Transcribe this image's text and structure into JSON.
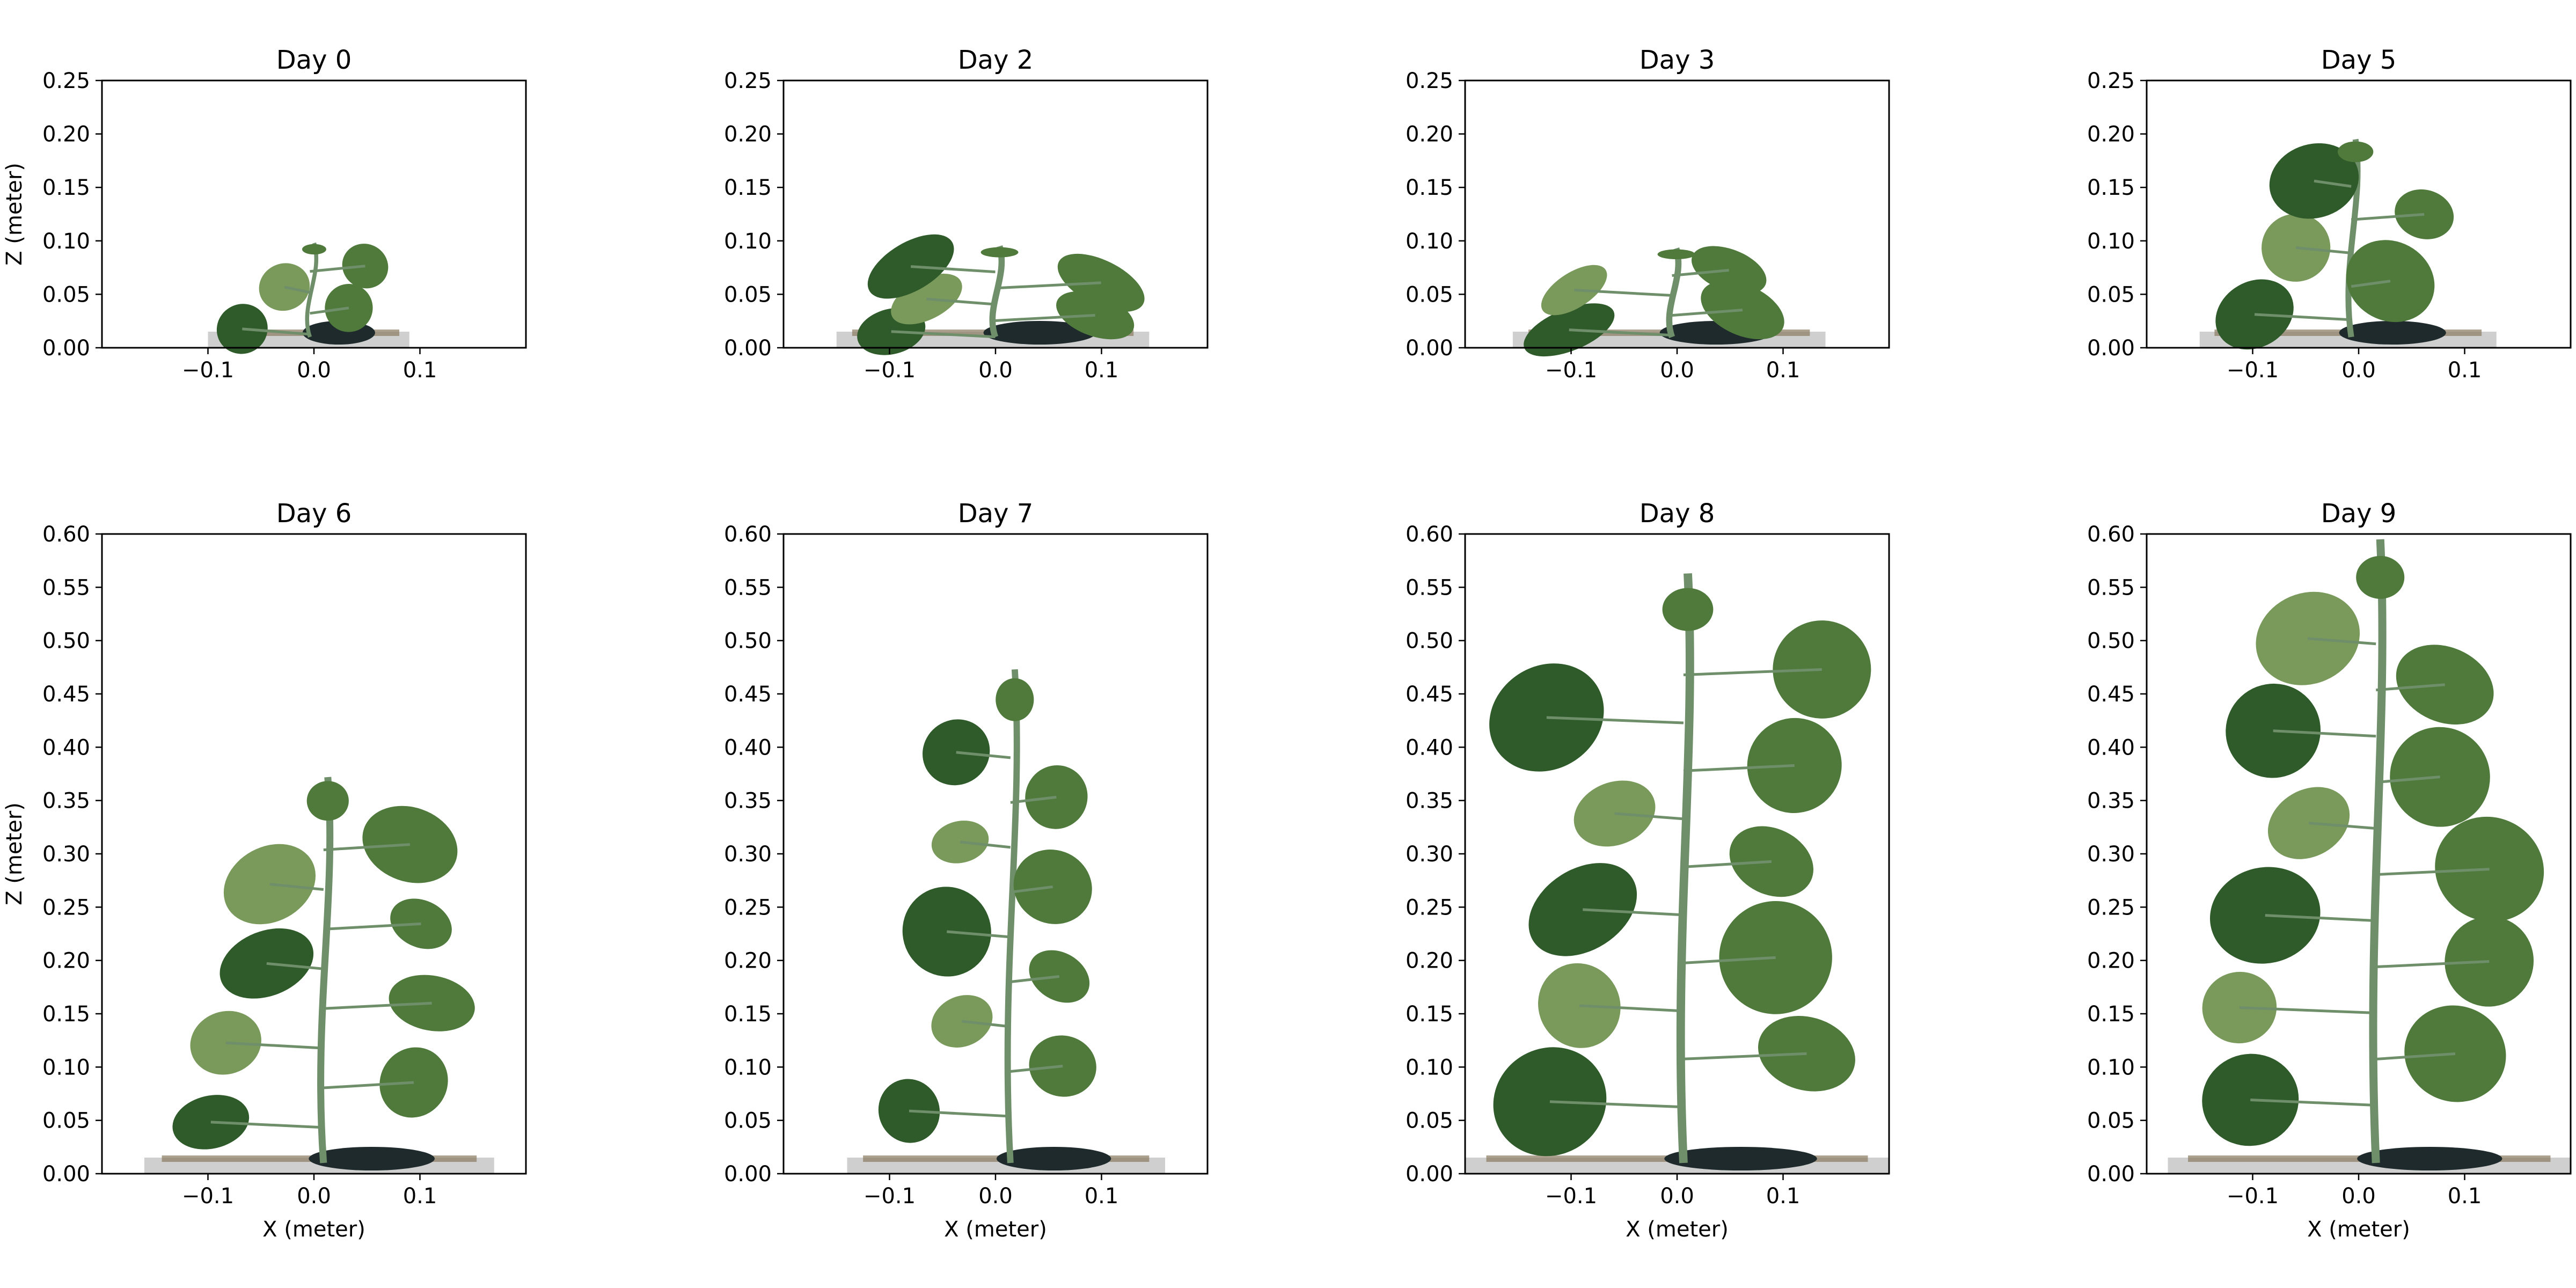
{
  "figure": {
    "background": "#ffffff",
    "colors": {
      "leaf_dark": "#2f5a2a",
      "leaf_mid": "#4f7a3c",
      "leaf_light": "#7a9a5c",
      "stem": "#6f8f6a",
      "soil": "#8a7a60",
      "dark_soil": "#1e2a2c",
      "tray": "#cfcfcf",
      "tray_blue": "#a9b6c2"
    }
  },
  "chart_data": [
    {
      "type": "scatter",
      "title": "Day 0",
      "xlabel": "",
      "ylabel": "Z (meter)",
      "xlim": [
        -0.2,
        0.2
      ],
      "ylim": [
        0.0,
        0.25
      ],
      "xticks": [
        -0.1,
        0.0,
        0.1
      ],
      "xtick_labels": [
        "−0.1",
        "0.0",
        "0.1"
      ],
      "yticks": [
        0.0,
        0.05,
        0.1,
        0.15,
        0.2,
        0.25
      ],
      "ytick_labels": [
        "0.00",
        "0.05",
        "0.10",
        "0.15",
        "0.20",
        "0.25"
      ],
      "point_cloud_extent": {
        "x": [
          -0.1,
          0.09
        ],
        "z": [
          0.0,
          0.098
        ]
      }
    },
    {
      "type": "scatter",
      "title": "Day 2",
      "xlabel": "",
      "ylabel": "",
      "xlim": [
        -0.2,
        0.2
      ],
      "ylim": [
        0.0,
        0.25
      ],
      "xticks": [
        -0.1,
        0.0,
        0.1
      ],
      "xtick_labels": [
        "−0.1",
        "0.0",
        "0.1"
      ],
      "yticks": [
        0.0,
        0.05,
        0.1,
        0.15,
        0.2,
        0.25
      ],
      "ytick_labels": [
        "0.00",
        "0.05",
        "0.10",
        "0.15",
        "0.20",
        "0.25"
      ],
      "point_cloud_extent": {
        "x": [
          -0.15,
          0.145
        ],
        "z": [
          0.0,
          0.095
        ]
      }
    },
    {
      "type": "scatter",
      "title": "Day 3",
      "xlabel": "",
      "ylabel": "",
      "xlim": [
        -0.2,
        0.2
      ],
      "ylim": [
        0.0,
        0.25
      ],
      "xticks": [
        -0.1,
        0.0,
        0.1
      ],
      "xtick_labels": [
        "−0.1",
        "0.0",
        "0.1"
      ],
      "yticks": [
        0.0,
        0.05,
        0.1,
        0.15,
        0.2,
        0.25
      ],
      "ytick_labels": [
        "0.00",
        "0.05",
        "0.10",
        "0.15",
        "0.20",
        "0.25"
      ],
      "point_cloud_extent": {
        "x": [
          -0.155,
          0.14
        ],
        "z": [
          0.0,
          0.093
        ]
      }
    },
    {
      "type": "scatter",
      "title": "Day 5",
      "xlabel": "",
      "ylabel": "",
      "xlim": [
        -0.2,
        0.2
      ],
      "ylim": [
        0.0,
        0.25
      ],
      "xticks": [
        -0.1,
        0.0,
        0.1
      ],
      "xtick_labels": [
        "−0.1",
        "0.0",
        "0.1"
      ],
      "yticks": [
        0.0,
        0.05,
        0.1,
        0.15,
        0.2,
        0.25
      ],
      "ytick_labels": [
        "0.00",
        "0.05",
        "0.10",
        "0.15",
        "0.20",
        "0.25"
      ],
      "point_cloud_extent": {
        "x": [
          -0.15,
          0.13
        ],
        "z": [
          0.0,
          0.195
        ]
      }
    },
    {
      "type": "scatter",
      "title": "Day 6",
      "xlabel": "X (meter)",
      "ylabel": "Z (meter)",
      "xlim": [
        -0.2,
        0.2
      ],
      "ylim": [
        0.0,
        0.6
      ],
      "xticks": [
        -0.1,
        0.0,
        0.1
      ],
      "xtick_labels": [
        "−0.1",
        "0.0",
        "0.1"
      ],
      "yticks": [
        0.0,
        0.05,
        0.1,
        0.15,
        0.2,
        0.25,
        0.3,
        0.35,
        0.4,
        0.45,
        0.5,
        0.55,
        0.6
      ],
      "ytick_labels": [
        "0.00",
        "0.05",
        "0.10",
        "0.15",
        "0.20",
        "0.25",
        "0.30",
        "0.35",
        "0.40",
        "0.45",
        "0.50",
        "0.55",
        "0.60"
      ],
      "point_cloud_extent": {
        "x": [
          -0.16,
          0.17
        ],
        "z": [
          0.0,
          0.372
        ]
      }
    },
    {
      "type": "scatter",
      "title": "Day 7",
      "xlabel": "X (meter)",
      "ylabel": "",
      "xlim": [
        -0.2,
        0.2
      ],
      "ylim": [
        0.0,
        0.6
      ],
      "xticks": [
        -0.1,
        0.0,
        0.1
      ],
      "xtick_labels": [
        "−0.1",
        "0.0",
        "0.1"
      ],
      "yticks": [
        0.0,
        0.05,
        0.1,
        0.15,
        0.2,
        0.25,
        0.3,
        0.35,
        0.4,
        0.45,
        0.5,
        0.55,
        0.6
      ],
      "ytick_labels": [
        "0.00",
        "0.05",
        "0.10",
        "0.15",
        "0.20",
        "0.25",
        "0.30",
        "0.35",
        "0.40",
        "0.45",
        "0.50",
        "0.55",
        "0.60"
      ],
      "point_cloud_extent": {
        "x": [
          -0.14,
          0.16
        ],
        "z": [
          0.0,
          0.473
        ]
      }
    },
    {
      "type": "scatter",
      "title": "Day 8",
      "xlabel": "X (meter)",
      "ylabel": "",
      "xlim": [
        -0.2,
        0.2
      ],
      "ylim": [
        0.0,
        0.6
      ],
      "xticks": [
        -0.1,
        0.0,
        0.1
      ],
      "xtick_labels": [
        "−0.1",
        "0.0",
        "0.1"
      ],
      "yticks": [
        0.0,
        0.05,
        0.1,
        0.15,
        0.2,
        0.25,
        0.3,
        0.35,
        0.4,
        0.45,
        0.5,
        0.55,
        0.6
      ],
      "ytick_labels": [
        "0.00",
        "0.05",
        "0.10",
        "0.15",
        "0.20",
        "0.25",
        "0.30",
        "0.35",
        "0.40",
        "0.45",
        "0.50",
        "0.55",
        "0.60"
      ],
      "point_cloud_extent": {
        "x": [
          -0.2,
          0.2
        ],
        "z": [
          0.0,
          0.563
        ]
      }
    },
    {
      "type": "scatter",
      "title": "Day 9",
      "xlabel": "X (meter)",
      "ylabel": "",
      "xlim": [
        -0.2,
        0.2
      ],
      "ylim": [
        0.0,
        0.6
      ],
      "xticks": [
        -0.1,
        0.0,
        0.1
      ],
      "xtick_labels": [
        "−0.1",
        "0.0",
        "0.1"
      ],
      "yticks": [
        0.0,
        0.05,
        0.1,
        0.15,
        0.2,
        0.25,
        0.3,
        0.35,
        0.4,
        0.45,
        0.5,
        0.55,
        0.6
      ],
      "ytick_labels": [
        "0.00",
        "0.05",
        "0.10",
        "0.15",
        "0.20",
        "0.25",
        "0.30",
        "0.35",
        "0.40",
        "0.45",
        "0.50",
        "0.55",
        "0.60"
      ],
      "point_cloud_extent": {
        "x": [
          -0.18,
          0.2
        ],
        "z": [
          0.0,
          0.595
        ]
      }
    }
  ]
}
